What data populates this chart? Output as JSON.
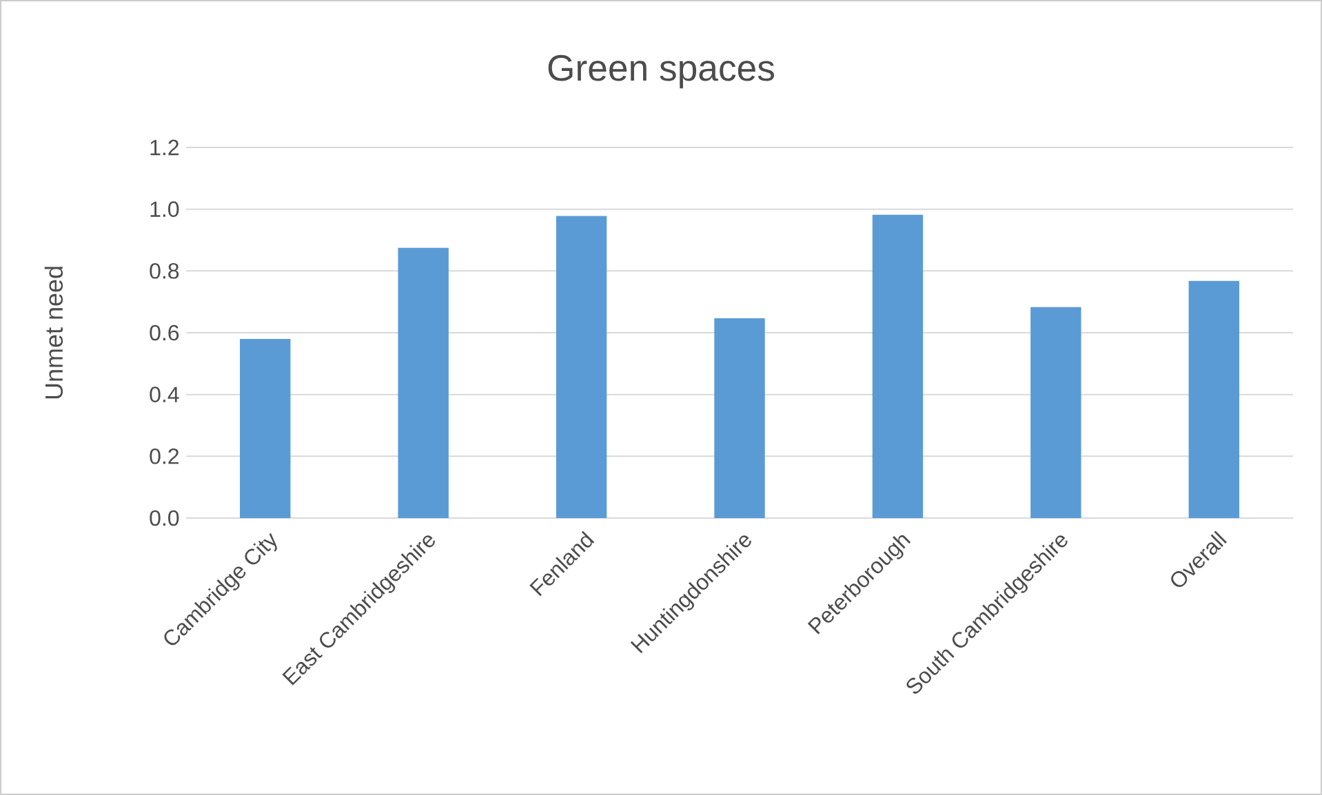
{
  "chart_data": {
    "type": "bar",
    "title": "Green spaces",
    "ylabel": "Unmet need",
    "categories": [
      "Cambridge City",
      "East Cambridgeshire",
      "Fenland",
      "Huntingdonshire",
      "Peterborough",
      "South Cambridgeshire",
      "Overall"
    ],
    "values": [
      0.58,
      0.875,
      0.978,
      0.647,
      0.982,
      0.683,
      0.768
    ],
    "color": "#5b9bd5",
    "ylim": [
      0,
      1.2
    ],
    "yticks": [
      {
        "value": 0,
        "label": "0.0"
      },
      {
        "value": 0.2,
        "label": "0.2"
      },
      {
        "value": 0.4,
        "label": "0.4"
      },
      {
        "value": 0.6,
        "label": "0.6"
      },
      {
        "value": 0.8,
        "label": "0.8"
      },
      {
        "value": 1.0,
        "label": "1.0"
      },
      {
        "value": 1.2,
        "label": "1.2"
      }
    ],
    "grid": "y"
  }
}
